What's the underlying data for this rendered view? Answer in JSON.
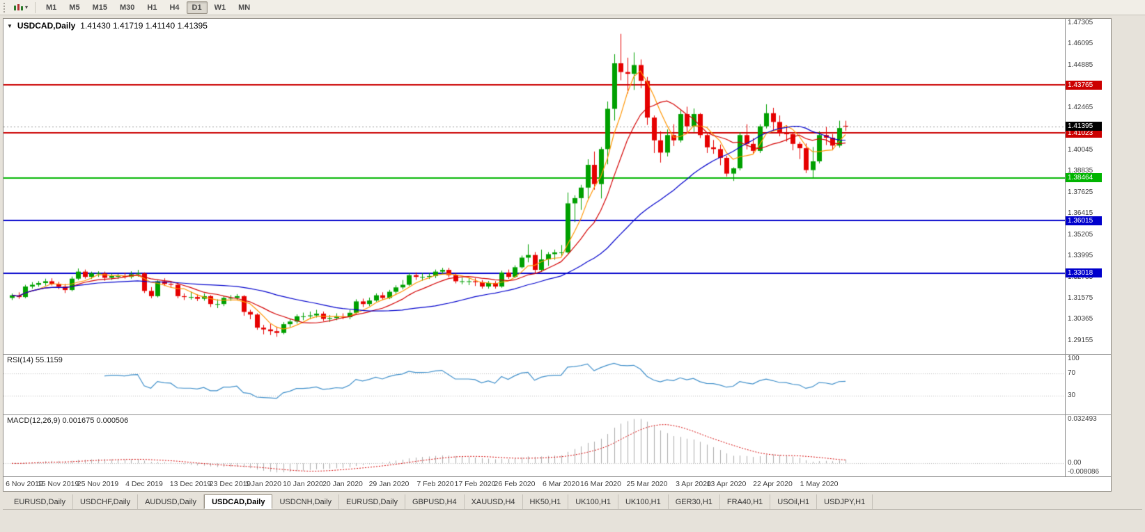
{
  "toolbar": {
    "timeframes": [
      "M1",
      "M5",
      "M15",
      "M30",
      "H1",
      "H4",
      "D1",
      "W1",
      "MN"
    ],
    "active_timeframe": "D1"
  },
  "chart": {
    "symbol": "USDCAD,Daily",
    "ohlc_line": "1.41430 1.41719 1.41140 1.41395"
  },
  "rsi_pane": {
    "label": "RSI(14) 55.1159"
  },
  "macd_pane": {
    "label": "MACD(12,26,9) 0.001675 0.000506"
  },
  "tabs": {
    "items": [
      "EURUSD,Daily",
      "USDCHF,Daily",
      "AUDUSD,Daily",
      "USDCAD,Daily",
      "USDCNH,Daily",
      "EURUSD,Daily",
      "GBPUSD,H4",
      "XAUUSD,H4",
      "HK50,H1",
      "UK100,H1",
      "UK100,H1",
      "GER30,H1",
      "FRA40,H1",
      "USOil,H1",
      "USDJPY,H1"
    ],
    "active_index": 3
  },
  "chart_data": {
    "type": "candlestick",
    "title": "USDCAD,Daily",
    "y_range": [
      1.28398,
      1.47543
    ],
    "y_ticks": [
      1.47305,
      1.46095,
      1.44885,
      1.43675,
      1.42465,
      1.41255,
      1.40045,
      1.38835,
      1.37625,
      1.36415,
      1.35205,
      1.33995,
      1.32785,
      1.31575,
      1.30365,
      1.29155
    ],
    "x_labels": [
      {
        "t": "6 Nov 2019",
        "i": 0
      },
      {
        "t": "15 Nov 2019",
        "i": 7
      },
      {
        "t": "25 Nov 2019",
        "i": 13
      },
      {
        "t": "4 Dec 2019",
        "i": 20
      },
      {
        "t": "13 Dec 2019",
        "i": 27
      },
      {
        "t": "23 Dec 2019",
        "i": 33
      },
      {
        "t": "1 Jan 2020",
        "i": 38
      },
      {
        "t": "10 Jan 2020",
        "i": 44
      },
      {
        "t": "20 Jan 2020",
        "i": 50
      },
      {
        "t": "29 Jan 2020",
        "i": 57
      },
      {
        "t": "7 Feb 2020",
        "i": 64
      },
      {
        "t": "17 Feb 2020",
        "i": 70
      },
      {
        "t": "26 Feb 2020",
        "i": 76
      },
      {
        "t": "6 Mar 2020",
        "i": 83
      },
      {
        "t": "16 Mar 2020",
        "i": 89
      },
      {
        "t": "25 Mar 2020",
        "i": 96
      },
      {
        "t": "3 Apr 2020",
        "i": 103
      },
      {
        "t": "13 Apr 2020",
        "i": 108
      },
      {
        "t": "22 Apr 2020",
        "i": 115
      },
      {
        "t": "1 May 2020",
        "i": 122
      }
    ],
    "levels": [
      {
        "price": 1.43765,
        "label": "1.43765",
        "color": "#cc0000"
      },
      {
        "price": 1.41023,
        "label": "1.41023",
        "color": "#cc0000"
      },
      {
        "price": 1.38464,
        "label": "1.38464",
        "color": "#00b400"
      },
      {
        "price": 1.36015,
        "label": "1.36015",
        "color": "#0000cc"
      },
      {
        "price": 1.33018,
        "label": "1.33018",
        "color": "#0000cc"
      }
    ],
    "bid": {
      "price": 1.41395,
      "label": "1.41395",
      "color": "#000000"
    },
    "moving_averages": [
      {
        "period": 5,
        "color": "#ff9500"
      },
      {
        "period": 10,
        "color": "#d40000"
      },
      {
        "period": 30,
        "color": "#0000cc"
      }
    ],
    "colors": {
      "up": "#00a000",
      "down": "#e60000",
      "bid_line": "#9a9a9a"
    },
    "rsi": {
      "period": 14,
      "current": 55.1159,
      "levels": [
        100,
        70,
        30
      ],
      "line_color": "#3f8fca",
      "range": [
        0,
        100
      ]
    },
    "macd": {
      "fast": 12,
      "slow": 26,
      "signal": 9,
      "current_main": 0.001675,
      "current_signal": 0.000506,
      "hist_color": "#ababab",
      "signal_color": "#d40000",
      "axis": [
        {
          "value": 0.032493,
          "label": "0.032493"
        },
        {
          "value": 0,
          "label": "0.00"
        },
        {
          "value": -0.008086,
          "label": "-0.008086"
        }
      ]
    },
    "ohlc": [
      [
        1.316,
        1.3185,
        1.3148,
        1.3175
      ],
      [
        1.3175,
        1.3192,
        1.3155,
        1.3165
      ],
      [
        1.3165,
        1.3235,
        1.3158,
        1.3225
      ],
      [
        1.3225,
        1.325,
        1.3213,
        1.3235
      ],
      [
        1.3235,
        1.3256,
        1.3224,
        1.3245
      ],
      [
        1.3245,
        1.327,
        1.323,
        1.3255
      ],
      [
        1.3255,
        1.3272,
        1.3231,
        1.324
      ],
      [
        1.324,
        1.3252,
        1.321,
        1.3225
      ],
      [
        1.3225,
        1.324,
        1.3188,
        1.3205
      ],
      [
        1.3205,
        1.3282,
        1.3198,
        1.327
      ],
      [
        1.327,
        1.3328,
        1.3262,
        1.331
      ],
      [
        1.331,
        1.3322,
        1.327,
        1.328
      ],
      [
        1.328,
        1.331,
        1.3268,
        1.33
      ],
      [
        1.33,
        1.3312,
        1.328,
        1.33
      ],
      [
        1.33,
        1.331,
        1.3258,
        1.3275
      ],
      [
        1.3275,
        1.33,
        1.3263,
        1.3285
      ],
      [
        1.3285,
        1.3298,
        1.3268,
        1.3285
      ],
      [
        1.3285,
        1.3305,
        1.327,
        1.328
      ],
      [
        1.328,
        1.3312,
        1.327,
        1.3295
      ],
      [
        1.3295,
        1.332,
        1.3281,
        1.33
      ],
      [
        1.33,
        1.3306,
        1.3188,
        1.32
      ],
      [
        1.32,
        1.3222,
        1.3158,
        1.317
      ],
      [
        1.317,
        1.326,
        1.3163,
        1.3255
      ],
      [
        1.3255,
        1.3272,
        1.3228,
        1.324
      ],
      [
        1.324,
        1.3256,
        1.3218,
        1.3235
      ],
      [
        1.3235,
        1.3246,
        1.3158,
        1.317
      ],
      [
        1.317,
        1.3186,
        1.3148,
        1.3165
      ],
      [
        1.3165,
        1.3196,
        1.315,
        1.3165
      ],
      [
        1.3165,
        1.318,
        1.3142,
        1.3155
      ],
      [
        1.3155,
        1.3186,
        1.3144,
        1.317
      ],
      [
        1.317,
        1.3176,
        1.3108,
        1.3125
      ],
      [
        1.3125,
        1.3152,
        1.3102,
        1.3125
      ],
      [
        1.3125,
        1.3172,
        1.3113,
        1.316
      ],
      [
        1.316,
        1.3176,
        1.3143,
        1.316
      ],
      [
        1.316,
        1.3182,
        1.3149,
        1.317
      ],
      [
        1.317,
        1.3176,
        1.3058,
        1.308
      ],
      [
        1.308,
        1.3092,
        1.3038,
        1.3065
      ],
      [
        1.3065,
        1.3072,
        1.2978,
        1.299
      ],
      [
        1.299,
        1.3006,
        1.2952,
        1.298
      ],
      [
        1.298,
        1.3012,
        1.2948,
        1.297
      ],
      [
        1.297,
        1.2996,
        1.2938,
        1.296
      ],
      [
        1.296,
        1.3022,
        1.2952,
        1.301
      ],
      [
        1.301,
        1.3042,
        1.2993,
        1.3025
      ],
      [
        1.3025,
        1.3066,
        1.3013,
        1.3055
      ],
      [
        1.3055,
        1.3076,
        1.3033,
        1.3055
      ],
      [
        1.3055,
        1.3082,
        1.3038,
        1.306
      ],
      [
        1.306,
        1.3092,
        1.3048,
        1.307
      ],
      [
        1.307,
        1.3082,
        1.3028,
        1.304
      ],
      [
        1.304,
        1.3062,
        1.3023,
        1.3045
      ],
      [
        1.3045,
        1.3072,
        1.3033,
        1.3055
      ],
      [
        1.3055,
        1.3072,
        1.3038,
        1.305
      ],
      [
        1.305,
        1.3092,
        1.3038,
        1.3075
      ],
      [
        1.3075,
        1.3152,
        1.3068,
        1.314
      ],
      [
        1.314,
        1.3156,
        1.3108,
        1.3125
      ],
      [
        1.3125,
        1.3162,
        1.3113,
        1.3145
      ],
      [
        1.3145,
        1.3186,
        1.3138,
        1.3175
      ],
      [
        1.3175,
        1.3192,
        1.3148,
        1.316
      ],
      [
        1.316,
        1.3206,
        1.3153,
        1.3195
      ],
      [
        1.3195,
        1.3232,
        1.3183,
        1.322
      ],
      [
        1.322,
        1.3262,
        1.3208,
        1.3235
      ],
      [
        1.3235,
        1.3302,
        1.3228,
        1.329
      ],
      [
        1.329,
        1.3306,
        1.3263,
        1.328
      ],
      [
        1.328,
        1.3302,
        1.3258,
        1.328
      ],
      [
        1.328,
        1.3302,
        1.3268,
        1.3285
      ],
      [
        1.3285,
        1.3322,
        1.3273,
        1.331
      ],
      [
        1.331,
        1.3332,
        1.3293,
        1.332
      ],
      [
        1.332,
        1.3332,
        1.3278,
        1.329
      ],
      [
        1.329,
        1.3302,
        1.3243,
        1.3255
      ],
      [
        1.3255,
        1.3276,
        1.3238,
        1.3255
      ],
      [
        1.3255,
        1.3272,
        1.3233,
        1.3255
      ],
      [
        1.3255,
        1.3272,
        1.3228,
        1.325
      ],
      [
        1.325,
        1.3262,
        1.3213,
        1.3225
      ],
      [
        1.3225,
        1.3256,
        1.3213,
        1.3245
      ],
      [
        1.3245,
        1.3256,
        1.3213,
        1.3225
      ],
      [
        1.3225,
        1.3316,
        1.3218,
        1.3305
      ],
      [
        1.3305,
        1.3322,
        1.3268,
        1.328
      ],
      [
        1.328,
        1.3346,
        1.3273,
        1.3335
      ],
      [
        1.3335,
        1.3402,
        1.3328,
        1.339
      ],
      [
        1.339,
        1.3466,
        1.3363,
        1.3405
      ],
      [
        1.3405,
        1.3422,
        1.3303,
        1.332
      ],
      [
        1.332,
        1.3436,
        1.3308,
        1.338
      ],
      [
        1.338,
        1.3422,
        1.3343,
        1.341
      ],
      [
        1.341,
        1.3436,
        1.3378,
        1.342
      ],
      [
        1.342,
        1.3462,
        1.3398,
        1.342
      ],
      [
        1.342,
        1.3762,
        1.3413,
        1.37
      ],
      [
        1.37,
        1.3746,
        1.3593,
        1.373
      ],
      [
        1.373,
        1.3806,
        1.3663,
        1.379
      ],
      [
        1.379,
        1.3952,
        1.3728,
        1.392
      ],
      [
        1.392,
        1.3996,
        1.3778,
        1.381
      ],
      [
        1.381,
        1.4022,
        1.3728,
        1.401
      ],
      [
        1.401,
        1.4282,
        1.3923,
        1.424
      ],
      [
        1.424,
        1.4552,
        1.4173,
        1.45
      ],
      [
        1.45,
        1.4668,
        1.4403,
        1.445
      ],
      [
        1.445,
        1.4532,
        1.4328,
        1.444
      ],
      [
        1.444,
        1.4562,
        1.4348,
        1.449
      ],
      [
        1.449,
        1.4522,
        1.4358,
        1.44
      ],
      [
        1.44,
        1.4422,
        1.4148,
        1.419
      ],
      [
        1.419,
        1.4202,
        1.3988,
        1.406
      ],
      [
        1.406,
        1.4112,
        1.3933,
        1.399
      ],
      [
        1.399,
        1.4122,
        1.3968,
        1.409
      ],
      [
        1.409,
        1.4152,
        1.4028,
        1.406
      ],
      [
        1.406,
        1.4232,
        1.4048,
        1.421
      ],
      [
        1.421,
        1.4252,
        1.4103,
        1.414
      ],
      [
        1.414,
        1.4242,
        1.4108,
        1.421
      ],
      [
        1.421,
        1.4216,
        1.4073,
        1.409
      ],
      [
        1.409,
        1.4106,
        1.3988,
        1.402
      ],
      [
        1.402,
        1.4062,
        1.3983,
        1.401
      ],
      [
        1.401,
        1.4036,
        1.3918,
        1.396
      ],
      [
        1.396,
        1.3972,
        1.3853,
        1.387
      ],
      [
        1.387,
        1.3906,
        1.3828,
        1.39
      ],
      [
        1.39,
        1.4106,
        1.3888,
        1.409
      ],
      [
        1.409,
        1.4152,
        1.4008,
        1.404
      ],
      [
        1.404,
        1.4072,
        1.3983,
        1.4
      ],
      [
        1.4,
        1.4152,
        1.3988,
        1.414
      ],
      [
        1.414,
        1.4266,
        1.4128,
        1.4215
      ],
      [
        1.4215,
        1.4246,
        1.4113,
        1.4165
      ],
      [
        1.4165,
        1.4202,
        1.4083,
        1.41
      ],
      [
        1.41,
        1.4146,
        1.4053,
        1.4095
      ],
      [
        1.4095,
        1.4106,
        1.4003,
        1.404
      ],
      [
        1.404,
        1.4052,
        1.3953,
        1.4015
      ],
      [
        1.4015,
        1.4042,
        1.3873,
        1.389
      ],
      [
        1.389,
        1.4022,
        1.3848,
        1.394
      ],
      [
        1.394,
        1.4112,
        1.3928,
        1.409
      ],
      [
        1.409,
        1.4136,
        1.4033,
        1.4075
      ],
      [
        1.4075,
        1.4096,
        1.4003,
        1.403
      ],
      [
        1.403,
        1.4172,
        1.4018,
        1.413
      ],
      [
        1.4143,
        1.41719,
        1.4114,
        1.41395
      ]
    ]
  }
}
